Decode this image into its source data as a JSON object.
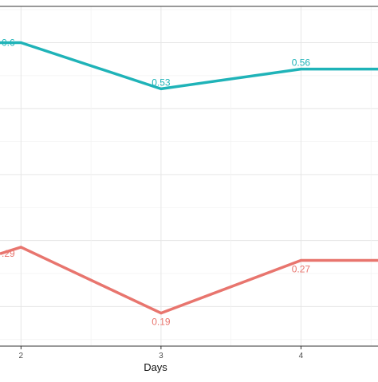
{
  "chart_data": {
    "type": "line",
    "xlabel": "Days",
    "ylabel": "",
    "x_ticks": [
      "2",
      "3",
      "4"
    ],
    "xlim": [
      1.85,
      4.55
    ],
    "ylim": [
      0.14,
      0.655
    ],
    "grid": true,
    "legend": "none",
    "series": [
      {
        "color": "#1fb3b8",
        "x": [
          1.85,
          2,
          3,
          4,
          4.55
        ],
        "values": [
          0.6,
          0.6,
          0.53,
          0.56,
          0.56
        ],
        "labels": [
          {
            "x": 1.85,
            "y": 0.6,
            "text": "0.6"
          },
          {
            "x": 3,
            "y": 0.53,
            "text": "0.53"
          },
          {
            "x": 4,
            "y": 0.56,
            "text": "0.56"
          }
        ]
      },
      {
        "color": "#e8756e",
        "x": [
          1.85,
          2,
          3,
          4,
          4.55
        ],
        "values": [
          0.28,
          0.29,
          0.19,
          0.27,
          0.27
        ],
        "labels": [
          {
            "x": 1.85,
            "y": 0.28,
            "text": ".29"
          },
          {
            "x": 3,
            "y": 0.19,
            "text": "0.19"
          },
          {
            "x": 4,
            "y": 0.27,
            "text": "0.27"
          }
        ]
      }
    ]
  }
}
